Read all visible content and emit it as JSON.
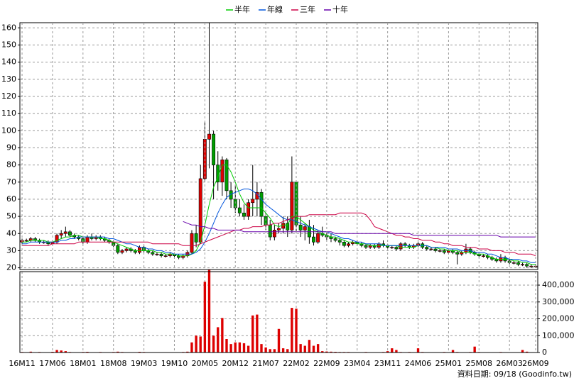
{
  "chart_data": [
    {
      "type": "candlestick",
      "legend_position": "top",
      "up_color": "#e00000",
      "down_color": "#00a000",
      "open": [
        35,
        36,
        36,
        37,
        36,
        35,
        35,
        34,
        35,
        39,
        40,
        41,
        39,
        38,
        37,
        35,
        38,
        37,
        38,
        37,
        36,
        35,
        33,
        29,
        30,
        31,
        30,
        29,
        32,
        30,
        29,
        28,
        28,
        27,
        27,
        28,
        27,
        26,
        27,
        29,
        40,
        35,
        72,
        95,
        98,
        80,
        70,
        83,
        65,
        60,
        55,
        52,
        50,
        58,
        60,
        64,
        50,
        45,
        38,
        42,
        43,
        46,
        42,
        70,
        45,
        42,
        44,
        38,
        35,
        40,
        39,
        38,
        37,
        36,
        35,
        33,
        34,
        35,
        34,
        33,
        32,
        33,
        32,
        34,
        33,
        32,
        32,
        31,
        34,
        33,
        32,
        33,
        34,
        32,
        31,
        31,
        30,
        30,
        29,
        30,
        29,
        28,
        29,
        31,
        29,
        28,
        27,
        27,
        26,
        25,
        24,
        26,
        24,
        23,
        23,
        22,
        22,
        21,
        21
      ],
      "high": [
        37,
        37,
        38,
        38,
        37,
        36,
        36,
        36,
        40,
        42,
        44,
        42,
        40,
        39,
        38,
        39,
        40,
        39,
        39,
        38,
        37,
        36,
        34,
        31,
        32,
        32,
        31,
        33,
        33,
        31,
        30,
        29,
        29,
        28,
        29,
        29,
        28,
        28,
        30,
        42,
        45,
        80,
        105,
        163,
        100,
        88,
        85,
        84,
        70,
        68,
        60,
        57,
        60,
        80,
        70,
        66,
        52,
        48,
        45,
        46,
        50,
        50,
        85,
        71,
        50,
        46,
        48,
        45,
        42,
        44,
        41,
        40,
        38,
        37,
        36,
        35,
        36,
        36,
        35,
        34,
        34,
        34,
        35,
        36,
        34,
        33,
        33,
        35,
        35,
        34,
        34,
        35,
        35,
        33,
        32,
        32,
        31,
        31,
        31,
        31,
        30,
        30,
        34,
        32,
        30,
        29,
        28,
        28,
        27,
        26,
        28,
        27,
        25,
        24,
        24,
        23,
        23,
        22,
        22
      ],
      "low": [
        34,
        35,
        35,
        35,
        34,
        34,
        33,
        33,
        34,
        37,
        38,
        38,
        37,
        36,
        34,
        34,
        36,
        36,
        36,
        35,
        34,
        32,
        28,
        28,
        29,
        29,
        28,
        28,
        29,
        28,
        27,
        27,
        26,
        26,
        26,
        26,
        25,
        25,
        26,
        28,
        32,
        34,
        70,
        78,
        60,
        65,
        62,
        60,
        55,
        52,
        50,
        48,
        48,
        50,
        50,
        45,
        42,
        36,
        36,
        40,
        40,
        38,
        40,
        40,
        38,
        36,
        34,
        33,
        34,
        38,
        36,
        35,
        35,
        33,
        32,
        32,
        33,
        33,
        32,
        31,
        31,
        31,
        31,
        32,
        31,
        31,
        30,
        30,
        32,
        31,
        31,
        32,
        31,
        30,
        30,
        29,
        29,
        28,
        28,
        28,
        22,
        27,
        28,
        28,
        27,
        26,
        26,
        25,
        24,
        23,
        23,
        23,
        22,
        22,
        21,
        21,
        20,
        20,
        20
      ],
      "close": [
        36,
        36,
        37,
        36,
        35,
        35,
        34,
        35,
        39,
        40,
        41,
        39,
        38,
        37,
        35,
        38,
        37,
        38,
        37,
        36,
        35,
        33,
        29,
        30,
        31,
        30,
        29,
        32,
        30,
        29,
        28,
        28,
        27,
        27,
        28,
        27,
        26,
        27,
        29,
        40,
        35,
        72,
        95,
        98,
        80,
        70,
        83,
        65,
        60,
        55,
        52,
        50,
        58,
        60,
        64,
        50,
        45,
        38,
        42,
        43,
        46,
        42,
        70,
        45,
        42,
        44,
        38,
        35,
        40,
        39,
        38,
        37,
        36,
        35,
        33,
        34,
        35,
        34,
        33,
        32,
        33,
        32,
        34,
        33,
        32,
        32,
        31,
        34,
        33,
        32,
        33,
        34,
        32,
        31,
        31,
        30,
        30,
        29,
        30,
        29,
        28,
        29,
        31,
        29,
        28,
        27,
        27,
        26,
        25,
        24,
        26,
        24,
        23,
        23,
        22,
        22,
        21,
        21,
        21
      ],
      "series": [
        {
          "name": "半年",
          "color": "#00cc00",
          "values": [
            35,
            35,
            36,
            36,
            36,
            36,
            35,
            35,
            36,
            37,
            38,
            38,
            39,
            39,
            38,
            38,
            38,
            38,
            37,
            37,
            36,
            35,
            34,
            33,
            32,
            31,
            30,
            30,
            30,
            30,
            30,
            29,
            29,
            28,
            28,
            28,
            27,
            27,
            27,
            28,
            30,
            35,
            45,
            57,
            67,
            73,
            80,
            80,
            76,
            70,
            63,
            58,
            55,
            55,
            55,
            55,
            52,
            49,
            45,
            44,
            45,
            45,
            50,
            50,
            48,
            46,
            44,
            42,
            41,
            40,
            39,
            38,
            38,
            37,
            36,
            35,
            35,
            34,
            34,
            34,
            33,
            33,
            33,
            33,
            33,
            33,
            33,
            32,
            32,
            32,
            32,
            33,
            33,
            33,
            32,
            32,
            31,
            31,
            30,
            30,
            30,
            29,
            29,
            29,
            28,
            28,
            28,
            27,
            26,
            25,
            25,
            25,
            25,
            24,
            24,
            23,
            23,
            22,
            22
          ]
        },
        {
          "name": "年線",
          "color": "#0055dd",
          "values": [
            34,
            34,
            35,
            35,
            35,
            35,
            35,
            35,
            35,
            36,
            36,
            37,
            37,
            38,
            38,
            38,
            38,
            38,
            38,
            38,
            37,
            37,
            36,
            35,
            34,
            34,
            33,
            32,
            32,
            31,
            31,
            30,
            30,
            29,
            29,
            28,
            28,
            28,
            28,
            28,
            29,
            31,
            35,
            40,
            46,
            52,
            57,
            61,
            63,
            64,
            65,
            66,
            66,
            65,
            63,
            60,
            57,
            55,
            53,
            51,
            49,
            48,
            48,
            47,
            46,
            45,
            44,
            43,
            42,
            41,
            41,
            40,
            39,
            38,
            37,
            37,
            36,
            35,
            35,
            34,
            34,
            34,
            34,
            33,
            33,
            33,
            33,
            33,
            33,
            33,
            33,
            33,
            33,
            33,
            32,
            32,
            32,
            32,
            31,
            31,
            31,
            30,
            30,
            30,
            29,
            29,
            29,
            28,
            28,
            27,
            26,
            26,
            25,
            25,
            25,
            24,
            24,
            23,
            23
          ]
        },
        {
          "name": "三年",
          "color": "#cc0044",
          "values": [
            33,
            33,
            33,
            33,
            33,
            33,
            33,
            34,
            34,
            34,
            34,
            34,
            34,
            35,
            35,
            35,
            35,
            35,
            35,
            35,
            35,
            35,
            35,
            35,
            35,
            35,
            35,
            35,
            35,
            35,
            34,
            34,
            34,
            34,
            34,
            34,
            34,
            33,
            33,
            33,
            33,
            34,
            35,
            36,
            37,
            38,
            39,
            40,
            41,
            42,
            42,
            43,
            43,
            44,
            44,
            44,
            45,
            45,
            46,
            46,
            47,
            48,
            49,
            50,
            50,
            50,
            51,
            51,
            51,
            51,
            51,
            51,
            51,
            52,
            52,
            52,
            52,
            52,
            52,
            51,
            48,
            44,
            43,
            42,
            41,
            40,
            39,
            39,
            38,
            38,
            37,
            37,
            36,
            36,
            36,
            35,
            35,
            34,
            34,
            33,
            33,
            33,
            32,
            32,
            32,
            31,
            31,
            31,
            30,
            30,
            30,
            29,
            29,
            29,
            28,
            28,
            28,
            28,
            27
          ]
        },
        {
          "name": "十年",
          "color": "#6600aa",
          "values": [
            null,
            null,
            null,
            null,
            null,
            null,
            null,
            null,
            null,
            null,
            null,
            null,
            null,
            null,
            null,
            null,
            null,
            null,
            null,
            null,
            null,
            null,
            null,
            null,
            null,
            null,
            null,
            null,
            null,
            null,
            null,
            null,
            null,
            null,
            null,
            null,
            null,
            47,
            46,
            45,
            45,
            44,
            44,
            43,
            43,
            42,
            42,
            42,
            42,
            42,
            42,
            41,
            41,
            41,
            41,
            41,
            41,
            41,
            41,
            41,
            41,
            41,
            41,
            41,
            41,
            41,
            41,
            41,
            41,
            41,
            41,
            41,
            40,
            40,
            40,
            40,
            40,
            40,
            40,
            40,
            40,
            40,
            40,
            40,
            40,
            40,
            40,
            40,
            40,
            40,
            39,
            39,
            39,
            39,
            39,
            39,
            39,
            39,
            39,
            39,
            39,
            39,
            39,
            39,
            39,
            39,
            39,
            39,
            39,
            39,
            38,
            38,
            38,
            38,
            38,
            38,
            38,
            38,
            38
          ]
        }
      ],
      "ylim": [
        19,
        163
      ],
      "yticks": [
        20,
        30,
        40,
        50,
        60,
        70,
        80,
        90,
        100,
        110,
        120,
        130,
        140,
        150,
        160
      ],
      "grid": true
    },
    {
      "type": "bar",
      "color": "#dd0000",
      "categories": [
        "16M11",
        null,
        null,
        null,
        null,
        null,
        null,
        "17M06",
        null,
        null,
        null,
        null,
        null,
        null,
        "18M01",
        null,
        null,
        null,
        null,
        null,
        null,
        "18M08",
        null,
        null,
        null,
        null,
        null,
        null,
        "19M03",
        null,
        null,
        null,
        null,
        null,
        null,
        "19M10",
        null,
        null,
        null,
        null,
        null,
        null,
        "20M05",
        null,
        null,
        null,
        null,
        null,
        null,
        "20M12",
        null,
        null,
        null,
        null,
        null,
        null,
        "21M07",
        null,
        null,
        null,
        null,
        null,
        null,
        "22M02",
        null,
        null,
        null,
        null,
        null,
        null,
        "22M09",
        null,
        null,
        null,
        null,
        null,
        null,
        "23M04",
        null,
        null,
        null,
        null,
        null,
        null,
        "23M11",
        null,
        null,
        null,
        null,
        null,
        null,
        "24M06",
        null,
        null,
        null,
        null,
        null,
        null,
        "25M01",
        null,
        null,
        null,
        null,
        null,
        null,
        "25M08",
        null,
        null,
        null,
        null,
        null,
        null,
        "26M03",
        null,
        null,
        null,
        null,
        null,
        "26M09"
      ],
      "values": [
        3000,
        2000,
        5000,
        2000,
        3000,
        2000,
        2000,
        4000,
        15000,
        12000,
        8000,
        3000,
        2000,
        2000,
        3000,
        4000,
        2000,
        2000,
        3000,
        2000,
        2000,
        3000,
        5000,
        3000,
        2000,
        2000,
        2000,
        4000,
        3000,
        2000,
        2000,
        2000,
        2000,
        2000,
        2000,
        2000,
        2000,
        3000,
        5000,
        60000,
        100000,
        95000,
        420000,
        490000,
        100000,
        150000,
        205000,
        80000,
        50000,
        60000,
        60000,
        55000,
        40000,
        220000,
        225000,
        50000,
        30000,
        20000,
        20000,
        140000,
        25000,
        20000,
        265000,
        260000,
        50000,
        40000,
        75000,
        40000,
        50000,
        8000,
        6000,
        5000,
        4000,
        3000,
        3000,
        3000,
        2000,
        2000,
        2000,
        3000,
        2000,
        2000,
        2000,
        3000,
        8000,
        25000,
        15000,
        3000,
        2000,
        3000,
        2000,
        25000,
        3000,
        2000,
        2000,
        2000,
        2000,
        3000,
        2000,
        15000,
        3000,
        2000,
        2000,
        3000,
        35000,
        3000,
        2000,
        2000,
        2000,
        2000,
        3000,
        2000,
        2000,
        2000,
        2000,
        15000,
        5000,
        2000,
        2000
      ],
      "ylim": [
        0,
        480000
      ],
      "yticks": [
        0,
        {
          "value": 100000,
          "label": "100,000"
        },
        {
          "value": 200000,
          "label": "200,000"
        },
        {
          "value": 300000,
          "label": "300,000"
        },
        {
          "value": 400000,
          "label": "400,000"
        }
      ],
      "grid": true
    }
  ],
  "footer": "資料日期: 09/18 (Goodinfo.tw)"
}
